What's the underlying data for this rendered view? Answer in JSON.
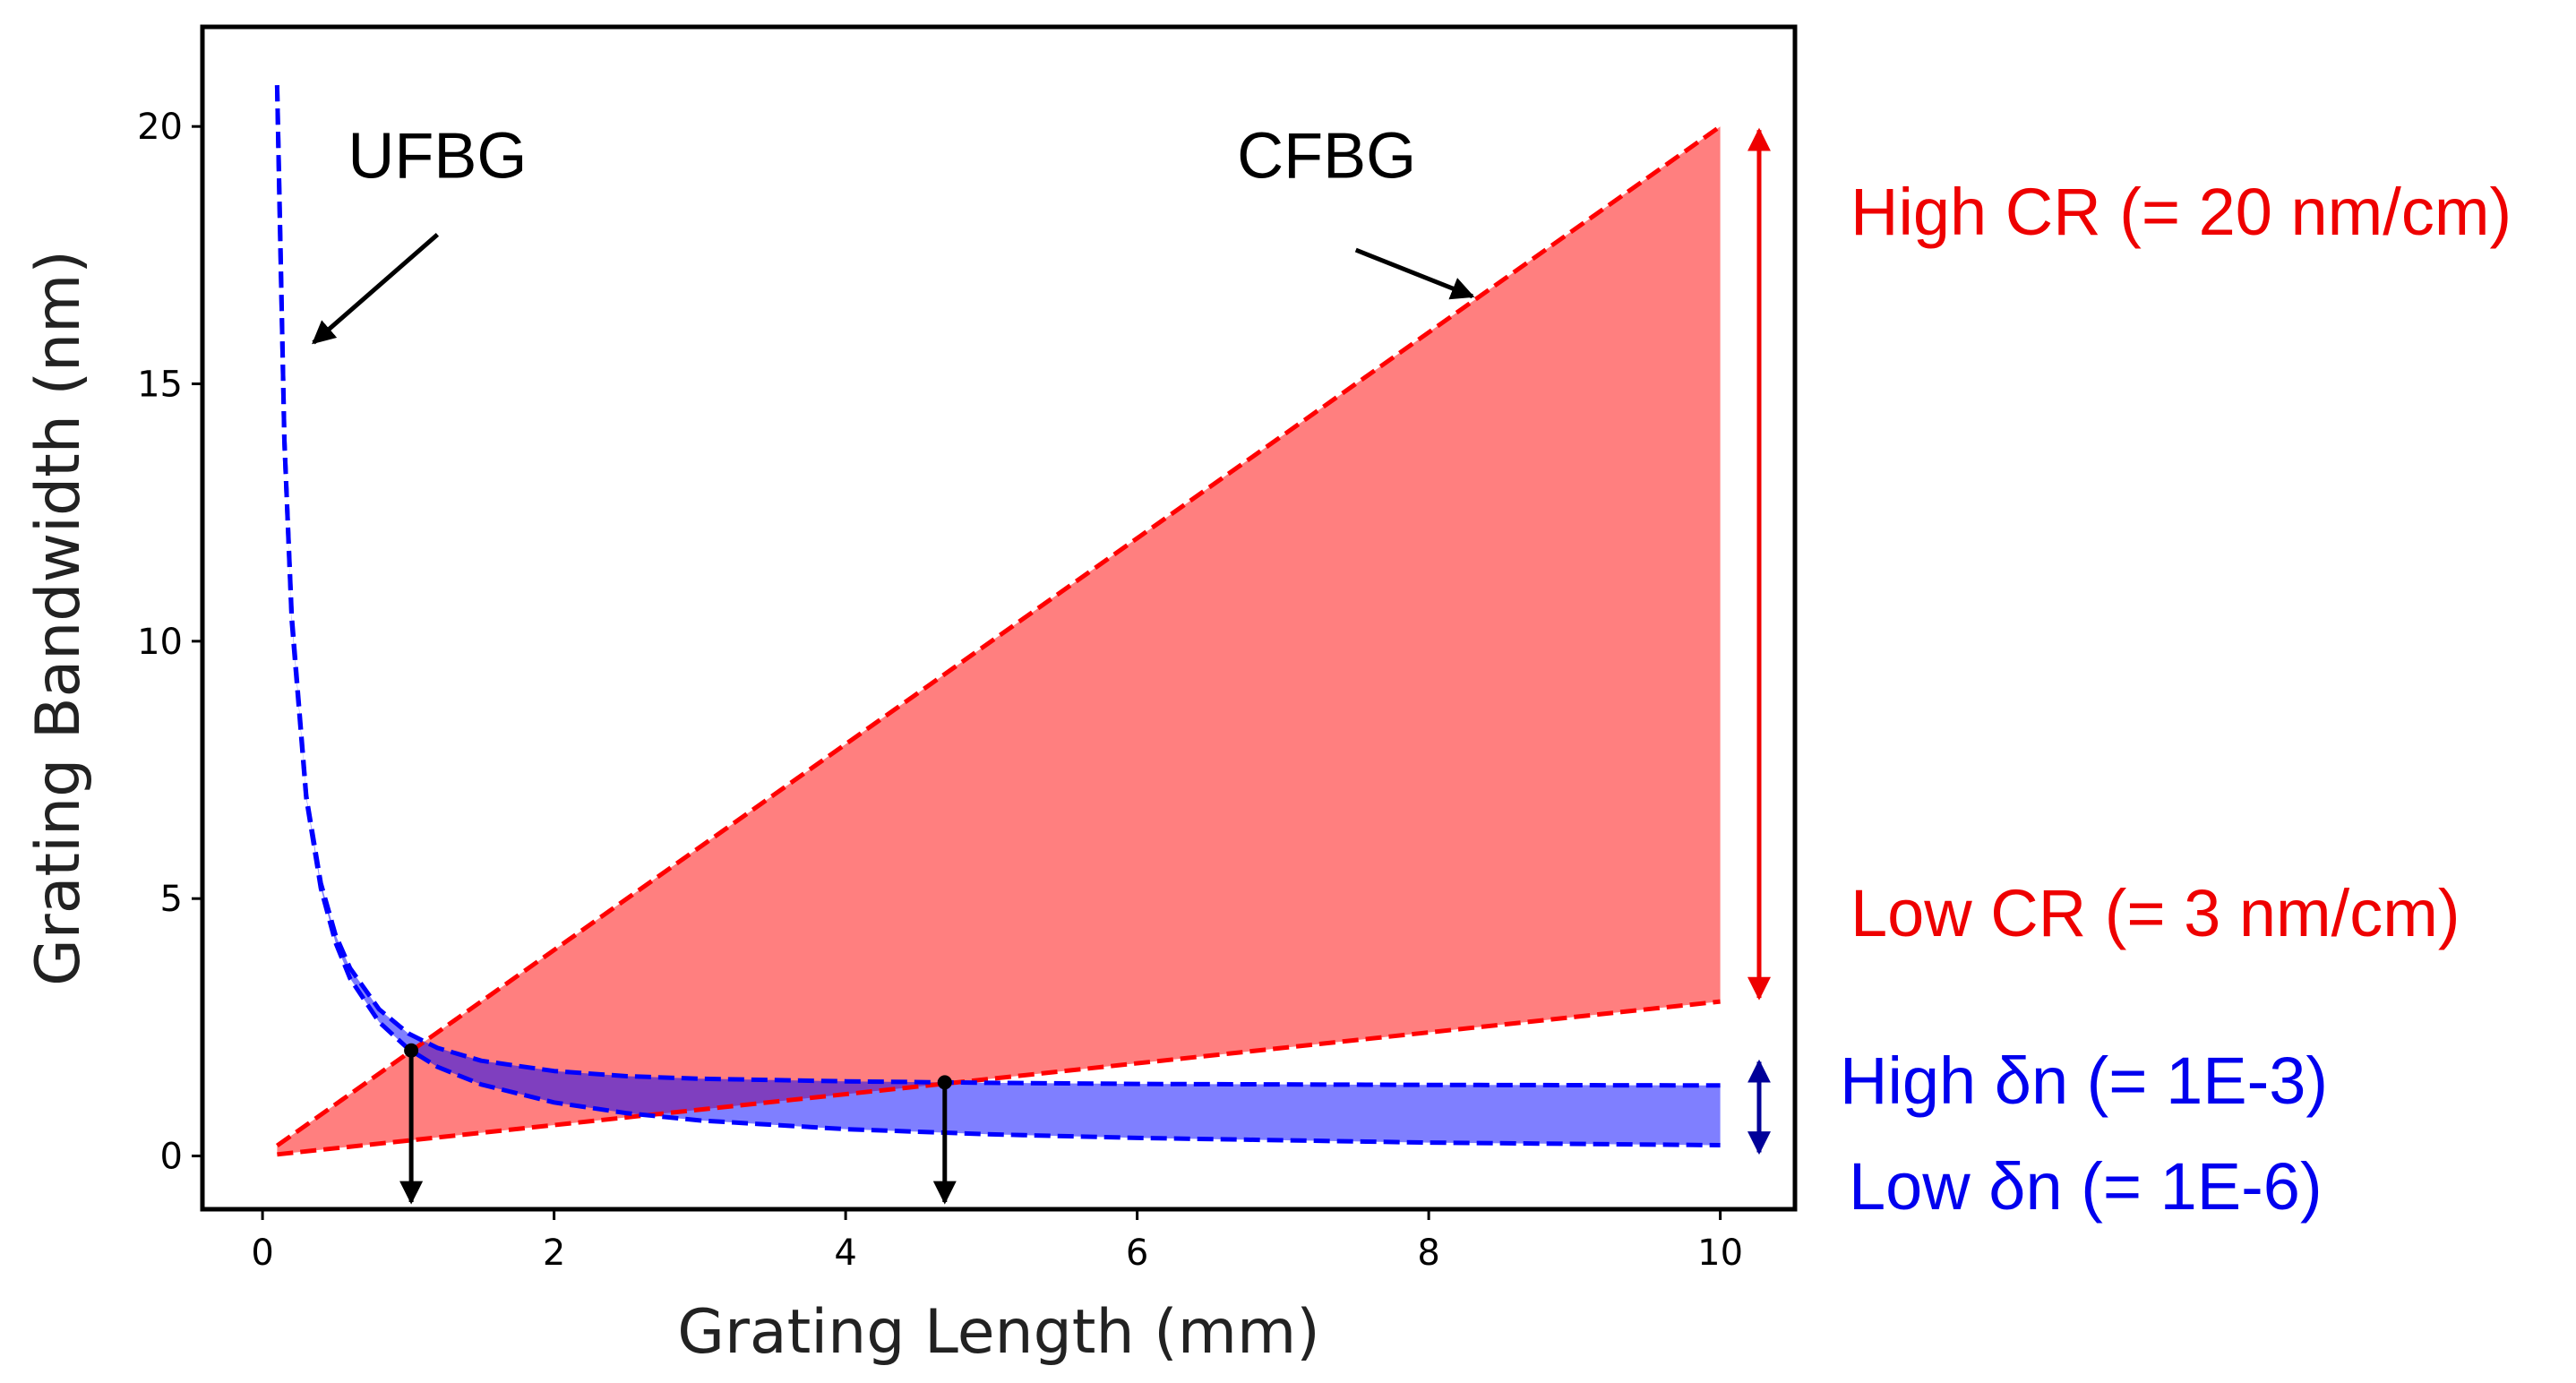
{
  "chart_data": {
    "type": "line",
    "title": "",
    "xlabel": "Grating Length (mm)",
    "ylabel": "Grating Bandwidth (nm)",
    "xlim": [
      -0.4,
      10.5
    ],
    "ylim": [
      -1.0,
      21.9
    ],
    "xticks": [
      0,
      2,
      4,
      6,
      8,
      10
    ],
    "yticks": [
      0,
      5,
      10,
      15,
      20
    ],
    "grid": false,
    "series": [
      {
        "name": "CFBG high chirp rate",
        "style": "dashed",
        "color": "#ff0000",
        "x": [
          0.1,
          10
        ],
        "y": [
          0.2,
          20
        ]
      },
      {
        "name": "CFBG low chirp rate",
        "style": "dashed",
        "color": "#ff0000",
        "x": [
          0.1,
          10
        ],
        "y": [
          0.03,
          3
        ]
      },
      {
        "name": "UFBG high index modulation",
        "style": "dashed",
        "color": "#0000ff",
        "x": [
          0.1,
          0.15,
          0.2,
          0.3,
          0.4,
          0.5,
          0.6,
          0.8,
          1.0,
          1.2,
          1.5,
          2.0,
          2.5,
          3.0,
          4.0,
          5.0,
          6.0,
          8.0,
          10.0
        ],
        "y": [
          20.8,
          13.9,
          10.5,
          7.0,
          5.3,
          4.3,
          3.65,
          2.85,
          2.38,
          2.1,
          1.85,
          1.65,
          1.55,
          1.5,
          1.45,
          1.42,
          1.4,
          1.38,
          1.37
        ]
      },
      {
        "name": "UFBG low index modulation",
        "style": "dashed",
        "color": "#0000ff",
        "x": [
          0.1,
          0.15,
          0.2,
          0.3,
          0.4,
          0.5,
          0.6,
          0.8,
          1.0,
          1.2,
          1.5,
          2.0,
          2.5,
          3.0,
          4.0,
          5.0,
          6.0,
          8.0,
          10.0
        ],
        "y": [
          20.8,
          13.9,
          10.4,
          6.95,
          5.2,
          4.15,
          3.45,
          2.6,
          2.08,
          1.73,
          1.39,
          1.04,
          0.83,
          0.69,
          0.52,
          0.42,
          0.35,
          0.26,
          0.21
        ]
      }
    ],
    "filled_regions": [
      {
        "name": "CFBG region",
        "between": [
          "CFBG low chirp rate",
          "CFBG high chirp rate"
        ],
        "color": "#ff0000",
        "alpha": 0.5
      },
      {
        "name": "UFBG region",
        "between": [
          "UFBG low index modulation",
          "UFBG high index modulation"
        ],
        "color": "#0000ff",
        "alpha": 0.5
      }
    ],
    "marked_points": [
      {
        "name": "lower intersection",
        "x": 1.02,
        "y": 2.05
      },
      {
        "name": "upper intersection",
        "x": 4.68,
        "y": 1.43
      }
    ],
    "annotations": [
      {
        "name": "ufbg",
        "text": "UFBG",
        "text_x": 1.2,
        "text_y": 19.0,
        "arrow_from": [
          1.2,
          17.9
        ],
        "arrow_to": [
          0.35,
          15.8
        ]
      },
      {
        "name": "cfbg",
        "text": "CFBG",
        "text_x": 7.3,
        "text_y": 19.0,
        "arrow_from": [
          7.5,
          17.6
        ],
        "arrow_to": [
          8.3,
          16.7
        ]
      }
    ],
    "side_labels": [
      {
        "name": "high-cr",
        "text": "High CR (= 20 nm/cm)",
        "color": "#ee0000"
      },
      {
        "name": "low-cr",
        "text": "Low CR (= 3 nm/cm)",
        "color": "#ee0000"
      },
      {
        "name": "high-dn",
        "text": "High δn (= 1E-3)",
        "color": "#0000ee"
      },
      {
        "name": "low-dn",
        "text": "Low δn (= 1E-6)",
        "color": "#0000ee"
      }
    ],
    "range_arrows": [
      {
        "name": "cr-range",
        "color": "#ee0000",
        "y_from": 3,
        "y_to": 20
      },
      {
        "name": "dn-range",
        "color": "#000099",
        "y_from": 0,
        "y_to": 1.9
      }
    ]
  }
}
